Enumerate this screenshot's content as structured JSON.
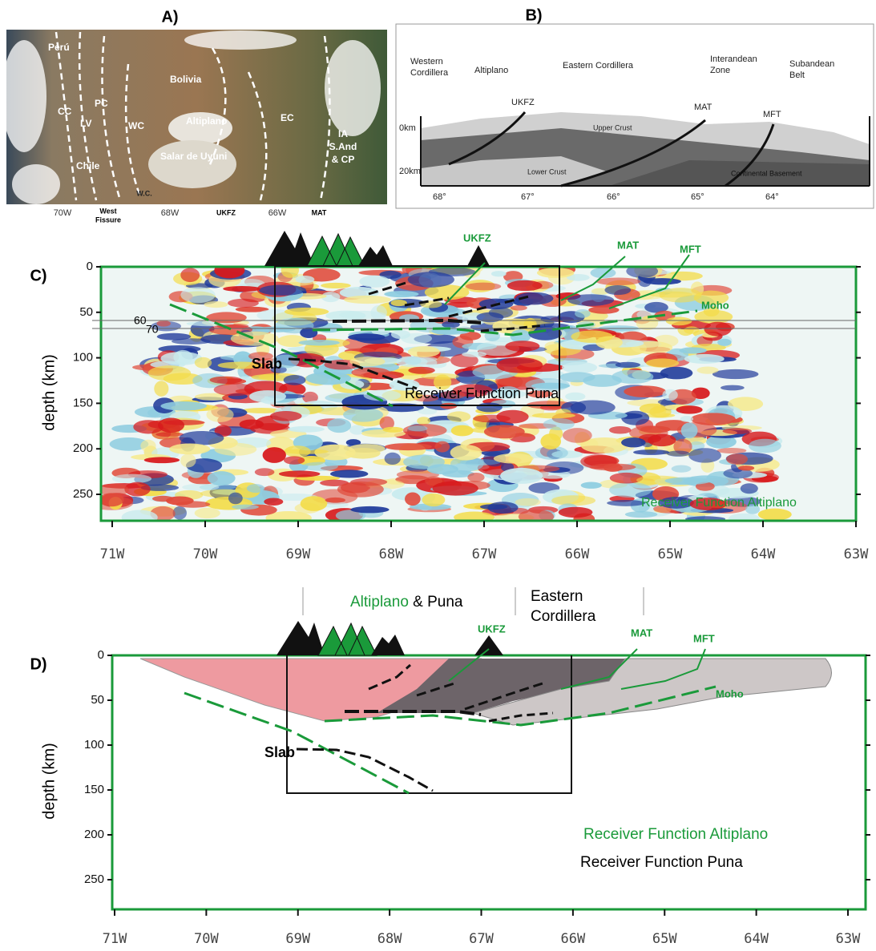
{
  "panel_a": {
    "label": "A)",
    "map_labels": [
      "Perú",
      "Bolivia",
      "CC",
      "PC",
      "LV",
      "WC",
      "Altiplano",
      "EC",
      "Chile",
      "Salar de Uyuni",
      "IA",
      "S.And",
      "& CP",
      "W.C."
    ],
    "axis_labels": [
      "70W",
      "West",
      "Fissure",
      "68W",
      "UKFZ",
      "66W",
      "MAT"
    ]
  },
  "panel_b": {
    "label": "B)",
    "regions": [
      "Western",
      "Cordillera",
      "Altiplano",
      "Eastern Cordillera",
      "Interandean",
      "Zone",
      "Subandean",
      "Belt"
    ],
    "faults": [
      "UKFZ",
      "MAT",
      "MFT"
    ],
    "depths": [
      "0km",
      "20km"
    ],
    "layers": [
      "Upper Crust",
      "Lower Crust",
      "Continental Basement"
    ],
    "longitudes": [
      "68°",
      "67°",
      "66°",
      "65°",
      "64°"
    ]
  },
  "panel_c": {
    "label": "C)",
    "y_axis_label": "depth (km)",
    "depth_ticks": [
      0,
      50,
      100,
      150,
      200,
      250
    ],
    "lon_ticks": [
      "71W",
      "70W",
      "69W",
      "68W",
      "67W",
      "66W",
      "65W",
      "64W",
      "63W"
    ],
    "faults": [
      "UKFZ",
      "MAT",
      "MFT"
    ],
    "moho": "Moho",
    "slab": "Slab",
    "level_labels": [
      "60",
      "70"
    ],
    "rf_puna": "Receiver Function Puna",
    "rf_altiplano": "Receiver Function Altiplano"
  },
  "panel_d": {
    "label": "D)",
    "regions": [
      "Altiplano",
      "& Puna",
      "Eastern",
      "Cordillera"
    ],
    "y_axis_label": "depth (km)",
    "depth_ticks": [
      0,
      50,
      100,
      150,
      200,
      250
    ],
    "lon_ticks": [
      "71W",
      "70W",
      "69W",
      "68W",
      "67W",
      "66W",
      "65W",
      "64W",
      "63W"
    ],
    "faults": [
      "UKFZ",
      "MAT",
      "MFT"
    ],
    "moho": "Moho",
    "slab": "Slab",
    "rf_altiplano": "Receiver Function Altiplano",
    "rf_puna": "Receiver Function Puna"
  }
}
